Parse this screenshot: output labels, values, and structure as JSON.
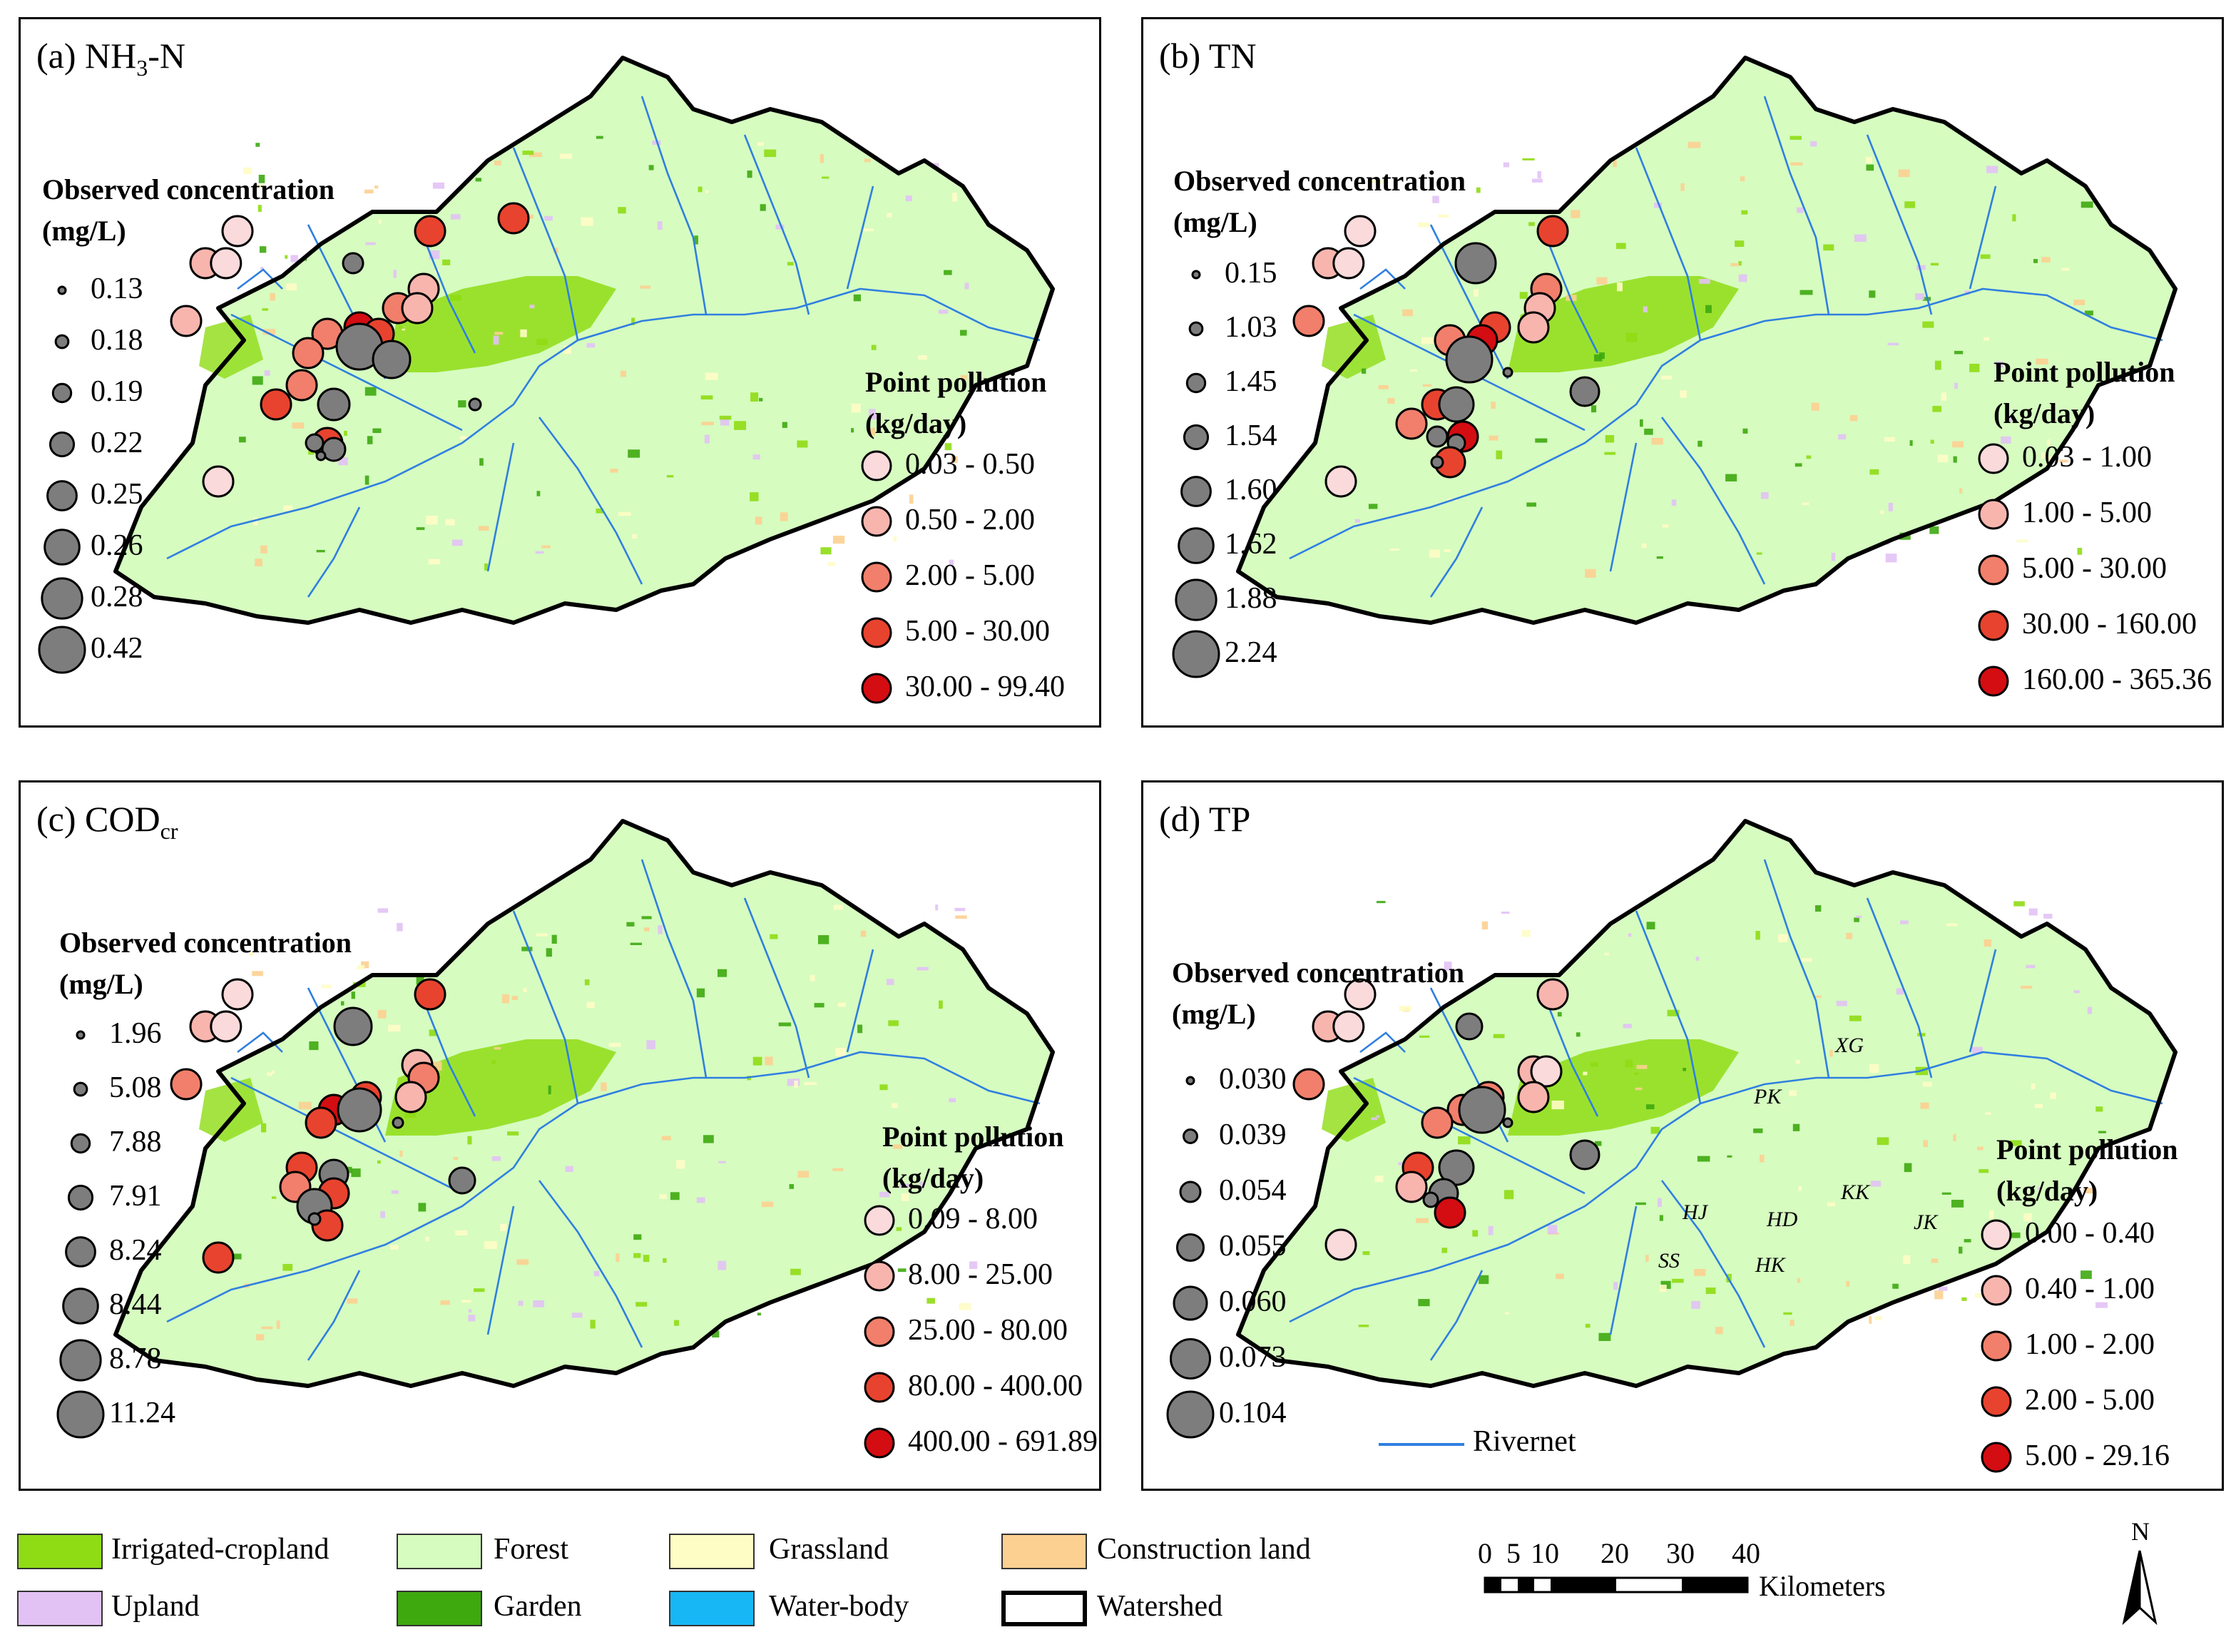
{
  "panels": [
    {
      "id": "a",
      "title": "(a) NH",
      "title_sub": "3",
      "title_tail": "-N",
      "obs_title_line1": "Observed concentration",
      "obs_title_line2": "(mg/L)",
      "obs_values": [
        "0.13",
        "0.18",
        "0.19",
        "0.22",
        "0.25",
        "0.26",
        "0.28",
        "0.42"
      ],
      "pp_title_line1": "Point pollution",
      "pp_title_line2": "(kg/day)",
      "pp_classes": [
        "0.03 - 0.50",
        "0.50 - 2.00",
        "2.00 - 5.00",
        "5.00 - 30.00",
        "30.00 - 99.40"
      ]
    },
    {
      "id": "b",
      "title": "(b) TN",
      "title_sub": "",
      "title_tail": "",
      "obs_title_line1": "Observed concentration",
      "obs_title_line2": "(mg/L)",
      "obs_values": [
        "0.15",
        "1.03",
        "1.45",
        "1.54",
        "1.60",
        "1.62",
        "1.88",
        "2.24"
      ],
      "pp_title_line1": "Point pollution",
      "pp_title_line2": "(kg/day)",
      "pp_classes": [
        "0.03 - 1.00",
        "1.00 - 5.00",
        "5.00 - 30.00",
        "30.00 - 160.00",
        "160.00 - 365.36"
      ]
    },
    {
      "id": "c",
      "title": "(c) COD",
      "title_sub": "cr",
      "title_tail": "",
      "obs_title_line1": "Observed concentration",
      "obs_title_line2": "(mg/L)",
      "obs_values": [
        "1.96",
        "5.08",
        "7.88",
        "7.91",
        "8.24",
        "8.44",
        "8.78",
        "11.24"
      ],
      "pp_title_line1": "Point pollution",
      "pp_title_line2": "(kg/day)",
      "pp_classes": [
        "0.09 - 8.00",
        "8.00 - 25.00",
        "25.00 - 80.00",
        "80.00 - 400.00",
        "400.00 - 691.89"
      ]
    },
    {
      "id": "d",
      "title": "(d) TP",
      "title_sub": "",
      "title_tail": "",
      "obs_title_line1": "Observed concentration",
      "obs_title_line2": "(mg/L)",
      "obs_values": [
        "0.030",
        "0.039",
        "0.054",
        "0.055",
        "0.060",
        "0.073",
        "0.104"
      ],
      "pp_title_line1": "Point pollution",
      "pp_title_line2": "(kg/day)",
      "pp_classes": [
        "0.00 - 0.40",
        "0.40 - 1.00",
        "1.00 - 2.00",
        "2.00 - 5.00",
        "5.00 - 29.16"
      ],
      "rivernet_label": "Rivernet",
      "site_labels": [
        "XG",
        "PK",
        "KK",
        "HJ",
        "HD",
        "SS",
        "HK",
        "JK"
      ]
    }
  ],
  "pp_colors": [
    "#fadadb",
    "#f7b5ae",
    "#f17f6b",
    "#e8432f",
    "#d40d12"
  ],
  "obs_color": "#7d7d7d",
  "land_cover_legend": [
    {
      "label": "Irrigated-cropland",
      "color": "#8fdc14"
    },
    {
      "label": "Forest",
      "color": "#d6fcc0"
    },
    {
      "label": "Grassland",
      "color": "#fefdc5"
    },
    {
      "label": "Construction land",
      "color": "#fcd091"
    },
    {
      "label": "Upland",
      "color": "#e2c2f5"
    },
    {
      "label": "Garden",
      "color": "#3ea80f"
    },
    {
      "label": "Water-body",
      "color": "#16b7f4"
    },
    {
      "label": "Watershed",
      "color": "#ffffff"
    }
  ],
  "scale_bar": {
    "ticks": [
      "0",
      "5",
      "10",
      "20",
      "30",
      "40"
    ],
    "unit": "Kilometers"
  },
  "north_label": "N"
}
